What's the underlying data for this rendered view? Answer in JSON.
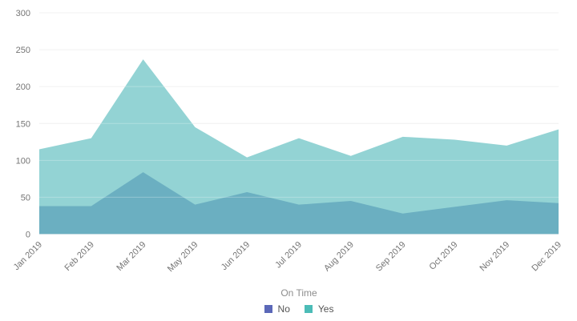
{
  "chart_data": {
    "type": "area",
    "stacked": true,
    "title": "",
    "xlabel": "",
    "ylabel": "",
    "categories": [
      "Jan 2019",
      "Feb 2019",
      "Mar 2019",
      "May 2019",
      "Jun 2019",
      "Jul 2019",
      "Aug 2019",
      "Sep 2019",
      "Oct 2019",
      "Nov 2019",
      "Dec 2019"
    ],
    "series": [
      {
        "name": "No",
        "area_color": "#68adc0",
        "legend_color": "#5b68b8",
        "values": [
          38,
          38,
          84,
          40,
          57,
          40,
          45,
          28,
          37,
          46,
          42
        ]
      },
      {
        "name": "Yes",
        "area_color": "#8dd1d2",
        "legend_color": "#4cbcb7",
        "values": [
          77,
          92,
          153,
          105,
          47,
          90,
          61,
          104,
          91,
          74,
          100
        ]
      }
    ],
    "stacked_totals": [
      115,
      130,
      237,
      145,
      104,
      130,
      106,
      132,
      128,
      120,
      142
    ],
    "ylim": [
      0,
      300
    ],
    "yticks": [
      0,
      50,
      100,
      150,
      200,
      250,
      300
    ],
    "grid": "horizontal",
    "grid_color": "#ececec",
    "axis_text_color": "#757575",
    "legend": {
      "title": "On Time",
      "position": "bottom"
    }
  }
}
